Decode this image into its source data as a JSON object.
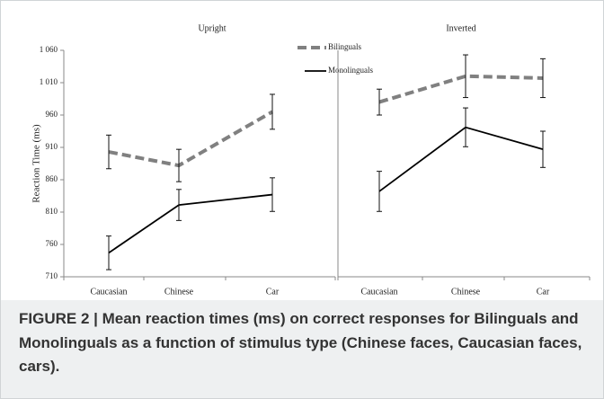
{
  "chart_data": [
    {
      "type": "line",
      "title": "Upright",
      "categories": [
        "Caucasian",
        "Chinese",
        "Car"
      ],
      "y_label": "Reaction Time (ms)",
      "ylim": [
        710,
        1060
      ],
      "yticks": [
        710,
        760,
        810,
        860,
        910,
        960,
        {
          "value": 1010,
          "label": "1 010"
        },
        {
          "value": 1060,
          "label": "1 060"
        }
      ],
      "series": [
        {
          "name": "Bilinguals",
          "color": "#808080",
          "line_style": "dashed",
          "values": [
            903,
            882,
            965
          ],
          "errors": [
            26,
            25,
            27
          ]
        },
        {
          "name": "Monolinguals",
          "color": "#000000",
          "line_style": "solid",
          "values": [
            747,
            821,
            837
          ],
          "errors": [
            26,
            24,
            26
          ]
        }
      ]
    },
    {
      "type": "line",
      "title": "Inverted",
      "categories": [
        "Caucasian",
        "Chinese",
        "Car"
      ],
      "ylim": [
        710,
        1060
      ],
      "series": [
        {
          "color": "#808080",
          "line_style": "dashed",
          "values": [
            980,
            1020,
            1017
          ],
          "errors": [
            20,
            33,
            30
          ]
        },
        {
          "color": "#000000",
          "line_style": "solid",
          "values": [
            842,
            941,
            907
          ],
          "errors": [
            31,
            30,
            28
          ]
        }
      ]
    }
  ],
  "caption": "FIGURE 2 | Mean reaction times (ms) on correct responses for Bilinguals and Monolinguals as a function of stimulus type (Chinese faces, Caucasian faces, cars)."
}
